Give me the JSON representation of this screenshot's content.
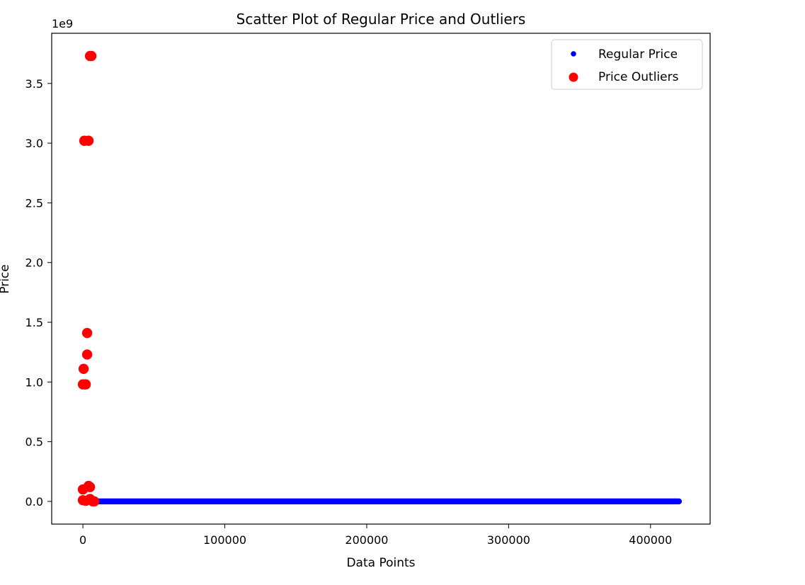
{
  "chart_data": {
    "type": "scatter",
    "title": "Scatter Plot of Regular Price and Outliers",
    "xlabel": "Data Points",
    "ylabel": "Price",
    "y_offset_label": "1e9",
    "xlim": [
      -22000,
      442000
    ],
    "ylim": [
      -190000000.0,
      3920000000.0
    ],
    "x_ticks": [
      0,
      100000,
      200000,
      300000,
      400000
    ],
    "x_tick_labels": [
      "0",
      "100000",
      "200000",
      "300000",
      "400000"
    ],
    "y_ticks": [
      0,
      500000000.0,
      1000000000.0,
      1500000000.0,
      2000000000.0,
      2500000000.0,
      3000000000.0,
      3500000000.0
    ],
    "y_tick_labels": [
      "0.0",
      "0.5",
      "1.0",
      "1.5",
      "2.0",
      "2.5",
      "3.0",
      "3.5"
    ],
    "grid": false,
    "legend_position": "top-right",
    "series": [
      {
        "name": "Regular Price",
        "color": "#0000ff",
        "marker_size": "small",
        "x_range": [
          1000,
          420000
        ],
        "y_constant": 0
      },
      {
        "name": "Price Outliers",
        "color": "#ff0000",
        "marker_size": "large",
        "points": [
          [
            5000,
            3730000000.0
          ],
          [
            6000,
            3730000000.0
          ],
          [
            1000,
            3020000000.0
          ],
          [
            4000,
            3020000000.0
          ],
          [
            3000,
            1410000000.0
          ],
          [
            3000,
            1230000000.0
          ],
          [
            500,
            1110000000.0
          ],
          [
            0,
            980000000.0
          ],
          [
            2000,
            980000000.0
          ],
          [
            0,
            100000000.0
          ],
          [
            4000,
            130000000.0
          ],
          [
            5000,
            120000000.0
          ],
          [
            0,
            10000000.0
          ],
          [
            2000,
            5000000.0
          ],
          [
            5000,
            20000000.0
          ],
          [
            7000,
            0.0
          ],
          [
            8000,
            0.0
          ]
        ]
      }
    ]
  }
}
